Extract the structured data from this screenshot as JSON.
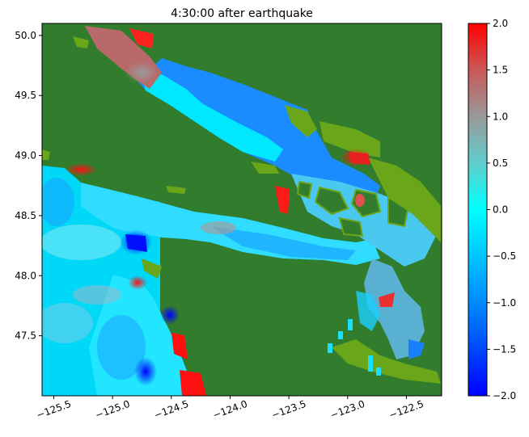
{
  "chart_data": {
    "type": "heatmap",
    "title": "4:30:00 after earthquake",
    "xlabel": "",
    "ylabel": "",
    "xlim": [
      -125.6,
      -122.2
    ],
    "ylim": [
      47.0,
      50.1
    ],
    "x_ticks": [
      -125.5,
      -125.0,
      -124.5,
      -124.0,
      -123.5,
      -123.0,
      -122.5
    ],
    "x_tick_labels": [
      "−125.5",
      "−125.0",
      "−124.5",
      "−124.0",
      "−123.5",
      "−123.0",
      "−122.5"
    ],
    "y_ticks": [
      47.5,
      48.0,
      48.5,
      49.0,
      49.5,
      50.0
    ],
    "y_tick_labels": [
      "47.5",
      "48.0",
      "48.5",
      "49.0",
      "49.5",
      "50.0"
    ],
    "colorbar": {
      "min": -2.0,
      "max": 2.0,
      "ticks": [
        -2.0,
        -1.5,
        -1.0,
        -0.5,
        0.0,
        0.5,
        1.0,
        1.5,
        2.0
      ],
      "tick_labels": [
        "−2.0",
        "−1.5",
        "−1.0",
        "−0.5",
        "0.0",
        "0.5",
        "1.0",
        "1.5",
        "2.0"
      ],
      "colors": [
        "#0000ff",
        "#00e5ff",
        "#999999",
        "#ff0000"
      ]
    },
    "land_color": "#327c2e",
    "shore_color": "#6aa61a"
  }
}
